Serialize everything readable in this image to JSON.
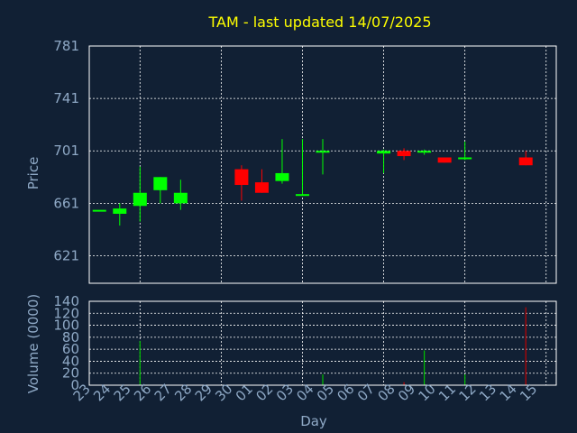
{
  "chart_data": {
    "type": "candlestick",
    "title": "TAM - last updated 14/07/2025",
    "xlabel": "Day",
    "price_panel": {
      "ylabel": "Price",
      "ylim": [
        600,
        781
      ],
      "yticks": [
        621,
        661,
        701,
        741,
        781
      ]
    },
    "volume_panel": {
      "ylabel": "Volume (0000)",
      "ylim": [
        0,
        140
      ],
      "yticks": [
        0,
        20,
        40,
        60,
        80,
        100,
        120,
        140
      ]
    },
    "x_tick_labels": [
      "23",
      "24",
      "25",
      "26",
      "27",
      "28",
      "29",
      "30",
      "01",
      "02",
      "03",
      "04",
      "05",
      "06",
      "07",
      "08",
      "09",
      "10",
      "11",
      "12",
      "13",
      "14",
      "15"
    ],
    "grid": true,
    "candles": [
      {
        "day": "23",
        "open": 656,
        "close": 656,
        "high": 656,
        "low": 656,
        "volume": 0
      },
      {
        "day": "24",
        "open": 653,
        "close": 657,
        "high": 661,
        "low": 644,
        "volume": 0
      },
      {
        "day": "25",
        "open": 659,
        "close": 669,
        "high": 689,
        "low": 647,
        "volume": 74
      },
      {
        "day": "26",
        "open": 671,
        "close": 681,
        "high": 681,
        "low": 661,
        "volume": 0
      },
      {
        "day": "27",
        "open": 661,
        "close": 669,
        "high": 679,
        "low": 656,
        "volume": 0
      },
      {
        "day": "30",
        "open": 687,
        "close": 675,
        "high": 690,
        "low": 663,
        "volume": 0
      },
      {
        "day": "01",
        "open": 677,
        "close": 669,
        "high": 687,
        "low": 669,
        "volume": 0
      },
      {
        "day": "02",
        "open": 678,
        "close": 684,
        "high": 710,
        "low": 676,
        "volume": 0
      },
      {
        "day": "03",
        "open": 668,
        "close": 668,
        "high": 710,
        "low": 667,
        "volume": 0
      },
      {
        "day": "04",
        "open": 700,
        "close": 701,
        "high": 710,
        "low": 683,
        "volume": 18
      },
      {
        "day": "07",
        "open": 699,
        "close": 701,
        "high": 702,
        "low": 684,
        "volume": 0
      },
      {
        "day": "08",
        "open": 701,
        "close": 697,
        "high": 703,
        "low": 694,
        "volume": 5
      },
      {
        "day": "09",
        "open": 700,
        "close": 701,
        "high": 702,
        "low": 698,
        "volume": 58
      },
      {
        "day": "10",
        "open": 696,
        "close": 692,
        "high": 696,
        "low": 692,
        "volume": 0
      },
      {
        "day": "11",
        "open": 695,
        "close": 696,
        "high": 708,
        "low": 694,
        "volume": 18
      },
      {
        "day": "14",
        "open": 696,
        "close": 690,
        "high": 701,
        "low": 690,
        "volume": 130
      }
    ],
    "colors": {
      "background": "#112034",
      "plot_border": "#ffffff",
      "grid": "#ffffff",
      "title": "#ffff00",
      "axis_text": "#8fa9c6",
      "up": "#00ff00",
      "down": "#ff0000",
      "volume_up": "#00c000",
      "volume_down": "#c00000"
    }
  }
}
